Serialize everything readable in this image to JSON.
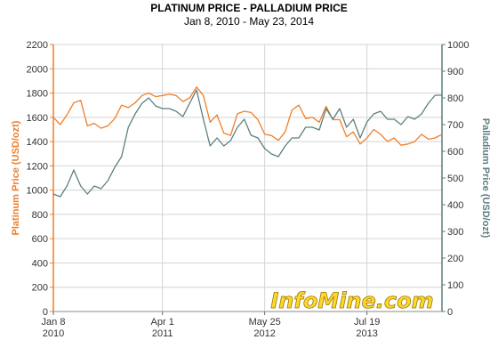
{
  "chart_data": {
    "type": "line",
    "title": "PLATINUM PRICE - PALLADIUM PRICE",
    "subtitle": "Jan 8, 2010 - May 23, 2014",
    "watermark": "InfoMine.com",
    "grid": true,
    "colors": {
      "platinum": "#ef7f2a",
      "palladium": "#5c7f7f",
      "grid": "#d4d4d4"
    },
    "x_tick_labels": [
      {
        "month": "Jan 8",
        "year": "2010",
        "date": "2010-01-08"
      },
      {
        "month": "Apr 1",
        "year": "2011",
        "date": "2011-04-01"
      },
      {
        "month": "May 25",
        "year": "2012",
        "date": "2012-05-25"
      },
      {
        "month": "Jul 19",
        "year": "2013",
        "date": "2013-07-19"
      }
    ],
    "xlim": [
      "2010-01-08",
      "2014-05-23"
    ],
    "y_left": {
      "label": "Platinum Price (USD/ozt)",
      "min": 0,
      "max": 2200,
      "ticks": [
        "0",
        "200",
        "400",
        "600",
        "800",
        "1000",
        "1200",
        "1400",
        "1600",
        "1800",
        "2000",
        "2200"
      ]
    },
    "y_right": {
      "label": "Palladium Price (USD/ozt)",
      "min": 0,
      "max": 1000,
      "ticks": [
        "0",
        "100",
        "200",
        "300",
        "400",
        "500",
        "600",
        "700",
        "800",
        "900",
        "1000"
      ]
    },
    "series": [
      {
        "key": "platinum",
        "axis": "left",
        "x": [
          "2010-01-08",
          "2010-02-05",
          "2010-03-05",
          "2010-04-02",
          "2010-04-30",
          "2010-05-28",
          "2010-06-25",
          "2010-07-23",
          "2010-08-20",
          "2010-09-17",
          "2010-10-15",
          "2010-11-12",
          "2010-12-10",
          "2011-01-07",
          "2011-02-04",
          "2011-03-04",
          "2011-04-01",
          "2011-04-29",
          "2011-05-27",
          "2011-06-24",
          "2011-07-22",
          "2011-08-19",
          "2011-09-16",
          "2011-10-14",
          "2011-11-11",
          "2011-12-09",
          "2012-01-06",
          "2012-02-03",
          "2012-03-02",
          "2012-03-30",
          "2012-04-27",
          "2012-05-25",
          "2012-06-22",
          "2012-07-20",
          "2012-08-17",
          "2012-09-14",
          "2012-10-12",
          "2012-11-09",
          "2012-12-07",
          "2013-01-04",
          "2013-02-01",
          "2013-03-01",
          "2013-03-29",
          "2013-04-26",
          "2013-05-24",
          "2013-06-21",
          "2013-07-19",
          "2013-08-16",
          "2013-09-13",
          "2013-10-11",
          "2013-11-08",
          "2013-12-06",
          "2014-01-03",
          "2014-01-31",
          "2014-02-28",
          "2014-03-28",
          "2014-04-25",
          "2014-05-23"
        ],
        "y": [
          1600,
          1540,
          1620,
          1720,
          1740,
          1530,
          1550,
          1510,
          1530,
          1590,
          1700,
          1680,
          1720,
          1780,
          1800,
          1770,
          1780,
          1790,
          1780,
          1730,
          1760,
          1850,
          1780,
          1560,
          1620,
          1470,
          1450,
          1630,
          1650,
          1640,
          1580,
          1460,
          1450,
          1410,
          1480,
          1660,
          1700,
          1590,
          1600,
          1560,
          1690,
          1580,
          1580,
          1440,
          1480,
          1380,
          1430,
          1500,
          1460,
          1400,
          1430,
          1370,
          1380,
          1400,
          1460,
          1420,
          1430,
          1460
        ]
      },
      {
        "key": "palladium",
        "axis": "right",
        "x": [
          "2010-01-08",
          "2010-02-05",
          "2010-03-05",
          "2010-04-02",
          "2010-04-30",
          "2010-05-28",
          "2010-06-25",
          "2010-07-23",
          "2010-08-20",
          "2010-09-17",
          "2010-10-15",
          "2010-11-12",
          "2010-12-10",
          "2011-01-07",
          "2011-02-04",
          "2011-03-04",
          "2011-04-01",
          "2011-04-29",
          "2011-05-27",
          "2011-06-24",
          "2011-07-22",
          "2011-08-19",
          "2011-09-16",
          "2011-10-14",
          "2011-11-11",
          "2011-12-09",
          "2012-01-06",
          "2012-02-03",
          "2012-03-02",
          "2012-03-30",
          "2012-04-27",
          "2012-05-25",
          "2012-06-22",
          "2012-07-20",
          "2012-08-17",
          "2012-09-14",
          "2012-10-12",
          "2012-11-09",
          "2012-12-07",
          "2013-01-04",
          "2013-02-01",
          "2013-03-01",
          "2013-03-29",
          "2013-04-26",
          "2013-05-24",
          "2013-06-21",
          "2013-07-19",
          "2013-08-16",
          "2013-09-13",
          "2013-10-11",
          "2013-11-08",
          "2013-12-06",
          "2014-01-03",
          "2014-01-31",
          "2014-02-28",
          "2014-03-28",
          "2014-04-25",
          "2014-05-23"
        ],
        "y": [
          440,
          430,
          470,
          530,
          470,
          440,
          470,
          460,
          490,
          540,
          580,
          690,
          740,
          780,
          800,
          770,
          760,
          760,
          750,
          730,
          780,
          830,
          720,
          620,
          650,
          620,
          640,
          690,
          720,
          660,
          650,
          610,
          590,
          580,
          620,
          650,
          650,
          690,
          690,
          680,
          760,
          720,
          760,
          690,
          720,
          650,
          710,
          740,
          750,
          720,
          720,
          700,
          730,
          720,
          740,
          780,
          810,
          810
        ]
      }
    ]
  }
}
